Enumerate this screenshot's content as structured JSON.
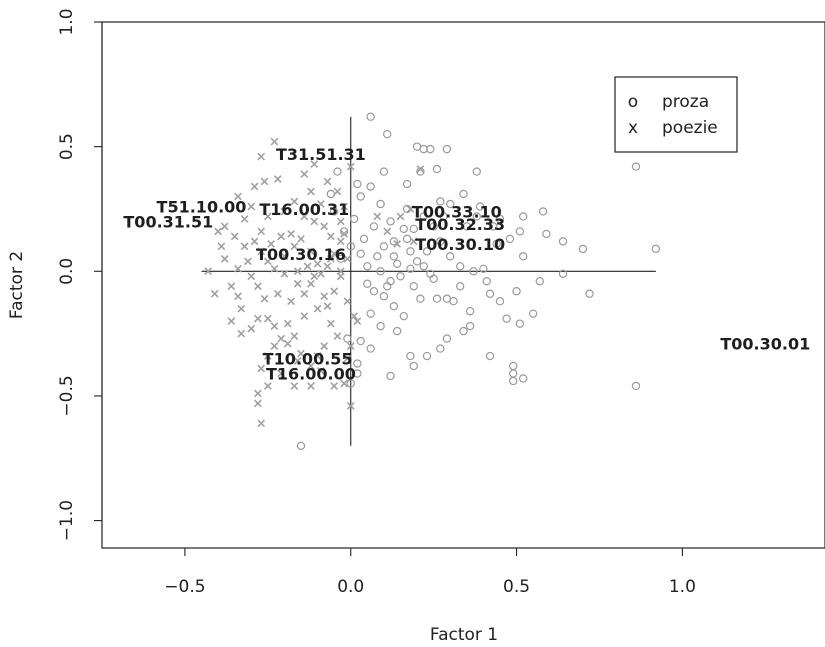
{
  "chart_data": {
    "type": "scatter",
    "title": "",
    "xlabel": "Factor 1",
    "ylabel": "Factor 2",
    "xlim": [
      -0.75,
      1.43
    ],
    "ylim": [
      -1.11,
      1.0
    ],
    "x_ticks": [
      {
        "value": -0.5,
        "label": "-0.5"
      },
      {
        "value": 0.0,
        "label": "0.0"
      },
      {
        "value": 0.5,
        "label": "0.5"
      },
      {
        "value": 1.0,
        "label": "1.0"
      }
    ],
    "y_ticks": [
      {
        "value": -1.0,
        "label": "-1.0"
      },
      {
        "value": -0.5,
        "label": "-0.5"
      },
      {
        "value": 0.0,
        "label": "0.0"
      },
      {
        "value": 0.5,
        "label": "0.5"
      },
      {
        "value": 1.0,
        "label": "1.0"
      }
    ],
    "legend": {
      "position": "top-right",
      "entries": [
        {
          "symbol": "o",
          "label": "proza"
        },
        {
          "symbol": "x",
          "label": "poezie"
        }
      ]
    },
    "reference_lines": {
      "horizontal": {
        "y": 0.0,
        "x_from": -0.45,
        "x_to": 0.92
      },
      "vertical": {
        "x": 0.0,
        "y_from": -0.7,
        "y_to": 0.62
      }
    },
    "variable_labels": [
      {
        "text": "T31.51.31",
        "x": -0.09,
        "y": 0.47
      },
      {
        "text": "T51.10.00",
        "x": -0.45,
        "y": 0.26
      },
      {
        "text": "T00.31.51",
        "x": -0.55,
        "y": 0.2
      },
      {
        "text": "T16.00.31",
        "x": -0.14,
        "y": 0.25
      },
      {
        "text": "T00.30.16",
        "x": -0.15,
        "y": 0.07
      },
      {
        "text": "T00.33.10",
        "x": 0.32,
        "y": 0.24
      },
      {
        "text": "T00.32.33",
        "x": 0.33,
        "y": 0.19
      },
      {
        "text": "T00.30.10",
        "x": 0.33,
        "y": 0.11
      },
      {
        "text": "T10.00.55",
        "x": -0.13,
        "y": -0.35
      },
      {
        "text": "T16.00.00",
        "x": -0.12,
        "y": -0.41
      },
      {
        "text": "T00.30.01",
        "x": 1.25,
        "y": -0.29
      }
    ],
    "series": [
      {
        "name": "proza",
        "marker": "o",
        "points": [
          [
            0.06,
            0.62
          ],
          [
            0.11,
            0.55
          ],
          [
            0.2,
            0.5
          ],
          [
            0.22,
            0.49
          ],
          [
            0.24,
            0.49
          ],
          [
            0.29,
            0.49
          ],
          [
            0.26,
            0.41
          ],
          [
            0.21,
            0.4
          ],
          [
            0.1,
            0.4
          ],
          [
            0.38,
            0.4
          ],
          [
            0.86,
            0.42
          ],
          [
            0.17,
            0.35
          ],
          [
            0.06,
            0.34
          ],
          [
            0.27,
            0.28
          ],
          [
            0.34,
            0.31
          ],
          [
            0.39,
            0.26
          ],
          [
            0.45,
            0.21
          ],
          [
            0.52,
            0.22
          ],
          [
            0.58,
            0.24
          ],
          [
            0.48,
            0.13
          ],
          [
            0.59,
            0.15
          ],
          [
            0.64,
            0.12
          ],
          [
            0.7,
            0.09
          ],
          [
            0.92,
            0.09
          ],
          [
            0.52,
            0.06
          ],
          [
            0.57,
            -0.04
          ],
          [
            0.64,
            -0.01
          ],
          [
            0.72,
            -0.09
          ],
          [
            0.45,
            -0.12
          ],
          [
            0.41,
            -0.04
          ],
          [
            0.31,
            -0.12
          ],
          [
            0.29,
            -0.11
          ],
          [
            0.26,
            -0.11
          ],
          [
            0.21,
            -0.11
          ],
          [
            0.36,
            -0.16
          ],
          [
            0.47,
            -0.19
          ],
          [
            0.51,
            -0.21
          ],
          [
            0.36,
            -0.22
          ],
          [
            0.34,
            -0.24
          ],
          [
            0.29,
            -0.27
          ],
          [
            0.27,
            -0.31
          ],
          [
            0.23,
            -0.34
          ],
          [
            0.18,
            -0.34
          ],
          [
            0.19,
            -0.38
          ],
          [
            0.42,
            -0.34
          ],
          [
            0.49,
            -0.38
          ],
          [
            0.49,
            -0.41
          ],
          [
            0.52,
            -0.43
          ],
          [
            0.49,
            -0.44
          ],
          [
            0.86,
            -0.46
          ],
          [
            0.09,
            -0.22
          ],
          [
            0.13,
            -0.14
          ],
          [
            0.14,
            -0.24
          ],
          [
            0.03,
            -0.28
          ],
          [
            0.06,
            -0.31
          ],
          [
            -0.01,
            -0.27
          ],
          [
            0.02,
            -0.37
          ],
          [
            0.12,
            -0.42
          ],
          [
            0.02,
            -0.41
          ],
          [
            -0.15,
            -0.7
          ],
          [
            0.0,
            -0.45
          ],
          [
            0.05,
            -0.05
          ],
          [
            0.07,
            -0.08
          ],
          [
            0.1,
            -0.1
          ],
          [
            0.12,
            -0.04
          ],
          [
            0.15,
            -0.02
          ],
          [
            0.18,
            0.01
          ],
          [
            0.2,
            0.04
          ],
          [
            0.22,
            0.02
          ],
          [
            0.25,
            -0.03
          ],
          [
            0.03,
            0.07
          ],
          [
            0.08,
            0.06
          ],
          [
            0.1,
            0.1
          ],
          [
            0.13,
            0.12
          ],
          [
            0.16,
            0.17
          ],
          [
            0.17,
            0.25
          ],
          [
            0.09,
            0.27
          ],
          [
            0.03,
            0.3
          ],
          [
            0.12,
            0.2
          ],
          [
            0.22,
            0.22
          ],
          [
            0.25,
            0.18
          ],
          [
            0.27,
            0.12
          ],
          [
            0.3,
            0.06
          ],
          [
            0.23,
            0.08
          ],
          [
            0.18,
            0.08
          ],
          [
            0.14,
            0.03
          ],
          [
            0.04,
            0.13
          ],
          [
            0.07,
            0.18
          ],
          [
            0.01,
            0.21
          ],
          [
            0.0,
            0.1
          ],
          [
            -0.02,
            0.16
          ],
          [
            -0.03,
            0.05
          ],
          [
            -0.05,
            0.24
          ],
          [
            -0.06,
            0.31
          ],
          [
            -0.04,
            0.4
          ],
          [
            0.02,
            0.35
          ],
          [
            0.09,
            0.0
          ],
          [
            0.05,
            0.02
          ],
          [
            0.06,
            -0.17
          ],
          [
            0.11,
            -0.06
          ],
          [
            0.13,
            0.06
          ],
          [
            0.17,
            0.13
          ],
          [
            0.19,
            0.17
          ],
          [
            0.33,
            0.02
          ],
          [
            0.37,
            0.0
          ],
          [
            0.4,
            0.01
          ],
          [
            0.44,
            0.11
          ],
          [
            0.35,
            0.18
          ],
          [
            0.28,
            0.22
          ],
          [
            0.3,
            0.27
          ],
          [
            0.38,
            0.22
          ],
          [
            0.43,
            0.18
          ],
          [
            0.51,
            0.16
          ],
          [
            0.24,
            -0.01
          ],
          [
            0.19,
            -0.06
          ],
          [
            0.16,
            -0.18
          ],
          [
            0.33,
            -0.06
          ],
          [
            0.42,
            -0.09
          ],
          [
            0.5,
            -0.08
          ],
          [
            0.55,
            -0.17
          ]
        ]
      },
      {
        "name": "poezie",
        "marker": "x",
        "points": [
          [
            -0.23,
            0.52
          ],
          [
            -0.27,
            0.46
          ],
          [
            -0.22,
            0.37
          ],
          [
            -0.26,
            0.36
          ],
          [
            -0.29,
            0.34
          ],
          [
            -0.34,
            0.3
          ],
          [
            -0.3,
            0.26
          ],
          [
            -0.38,
            0.18
          ],
          [
            -0.35,
            0.14
          ],
          [
            -0.32,
            0.1
          ],
          [
            -0.38,
            0.05
          ],
          [
            -0.34,
            0.01
          ],
          [
            -0.43,
            0.0
          ],
          [
            -0.41,
            -0.09
          ],
          [
            -0.34,
            -0.1
          ],
          [
            -0.36,
            -0.2
          ],
          [
            -0.33,
            -0.25
          ],
          [
            -0.3,
            -0.23
          ],
          [
            -0.28,
            -0.19
          ],
          [
            -0.25,
            -0.19
          ],
          [
            -0.23,
            -0.22
          ],
          [
            -0.21,
            -0.27
          ],
          [
            -0.23,
            -0.3
          ],
          [
            -0.25,
            -0.34
          ],
          [
            -0.27,
            -0.39
          ],
          [
            -0.25,
            -0.46
          ],
          [
            -0.28,
            -0.49
          ],
          [
            -0.28,
            -0.53
          ],
          [
            -0.27,
            -0.61
          ],
          [
            -0.21,
            -0.41
          ],
          [
            -0.17,
            -0.46
          ],
          [
            -0.12,
            -0.46
          ],
          [
            -0.05,
            -0.46
          ],
          [
            -0.02,
            -0.45
          ],
          [
            0.0,
            -0.54
          ],
          [
            -0.12,
            -0.38
          ],
          [
            -0.15,
            -0.33
          ],
          [
            -0.17,
            -0.26
          ],
          [
            -0.19,
            -0.21
          ],
          [
            -0.14,
            -0.18
          ],
          [
            -0.1,
            -0.15
          ],
          [
            -0.08,
            -0.1
          ],
          [
            -0.12,
            -0.05
          ],
          [
            -0.16,
            -0.05
          ],
          [
            -0.2,
            -0.01
          ],
          [
            -0.23,
            0.01
          ],
          [
            -0.25,
            0.04
          ],
          [
            -0.27,
            0.08
          ],
          [
            -0.24,
            0.11
          ],
          [
            -0.21,
            0.14
          ],
          [
            -0.18,
            0.15
          ],
          [
            -0.15,
            0.13
          ],
          [
            -0.12,
            0.08
          ],
          [
            -0.1,
            0.03
          ],
          [
            -0.09,
            -0.01
          ],
          [
            -0.07,
            0.02
          ],
          [
            -0.05,
            0.07
          ],
          [
            -0.03,
            0.12
          ],
          [
            -0.06,
            0.14
          ],
          [
            -0.08,
            0.18
          ],
          [
            -0.11,
            0.2
          ],
          [
            -0.14,
            0.22
          ],
          [
            -0.17,
            0.28
          ],
          [
            -0.12,
            0.32
          ],
          [
            -0.14,
            0.39
          ],
          [
            -0.03,
            0.2
          ],
          [
            -0.02,
            0.26
          ],
          [
            -0.04,
            0.32
          ],
          [
            -0.01,
            0.05
          ],
          [
            -0.03,
            -0.02
          ],
          [
            -0.05,
            -0.08
          ],
          [
            -0.07,
            -0.14
          ],
          [
            -0.06,
            -0.21
          ],
          [
            -0.04,
            -0.26
          ],
          [
            -0.08,
            -0.3
          ],
          [
            -0.1,
            -0.34
          ],
          [
            -0.18,
            -0.12
          ],
          [
            -0.22,
            -0.09
          ],
          [
            -0.26,
            -0.11
          ],
          [
            -0.28,
            -0.06
          ],
          [
            -0.3,
            -0.02
          ],
          [
            -0.31,
            0.04
          ],
          [
            -0.29,
            0.12
          ],
          [
            -0.27,
            0.16
          ],
          [
            -0.25,
            0.22
          ],
          [
            -0.2,
            0.24
          ],
          [
            -0.09,
            0.27
          ],
          [
            -0.07,
            0.36
          ],
          [
            -0.11,
            0.43
          ],
          [
            -0.16,
            0.0
          ],
          [
            -0.13,
            0.02
          ],
          [
            -0.11,
            -0.02
          ],
          [
            -0.14,
            -0.09
          ],
          [
            -0.2,
            0.06
          ],
          [
            -0.17,
            0.1
          ],
          [
            -0.06,
            0.05
          ],
          [
            -0.03,
            0.0
          ],
          [
            -0.01,
            -0.12
          ],
          [
            0.01,
            -0.18
          ],
          [
            -0.02,
            0.15
          ],
          [
            0.0,
            0.42
          ],
          [
            -0.33,
            -0.15
          ],
          [
            -0.36,
            -0.06
          ],
          [
            -0.39,
            0.1
          ],
          [
            -0.4,
            0.16
          ],
          [
            -0.32,
            0.21
          ],
          [
            -0.19,
            -0.29
          ],
          [
            -0.16,
            -0.36
          ],
          [
            -0.09,
            -0.4
          ],
          [
            0.0,
            -0.3
          ],
          [
            0.02,
            -0.2
          ],
          [
            -0.01,
            -0.35
          ],
          [
            0.21,
            0.41
          ],
          [
            0.15,
            0.22
          ],
          [
            0.18,
            0.25
          ],
          [
            0.14,
            0.11
          ],
          [
            0.08,
            0.22
          ],
          [
            0.19,
            0.12
          ],
          [
            0.11,
            0.16
          ]
        ]
      }
    ]
  }
}
